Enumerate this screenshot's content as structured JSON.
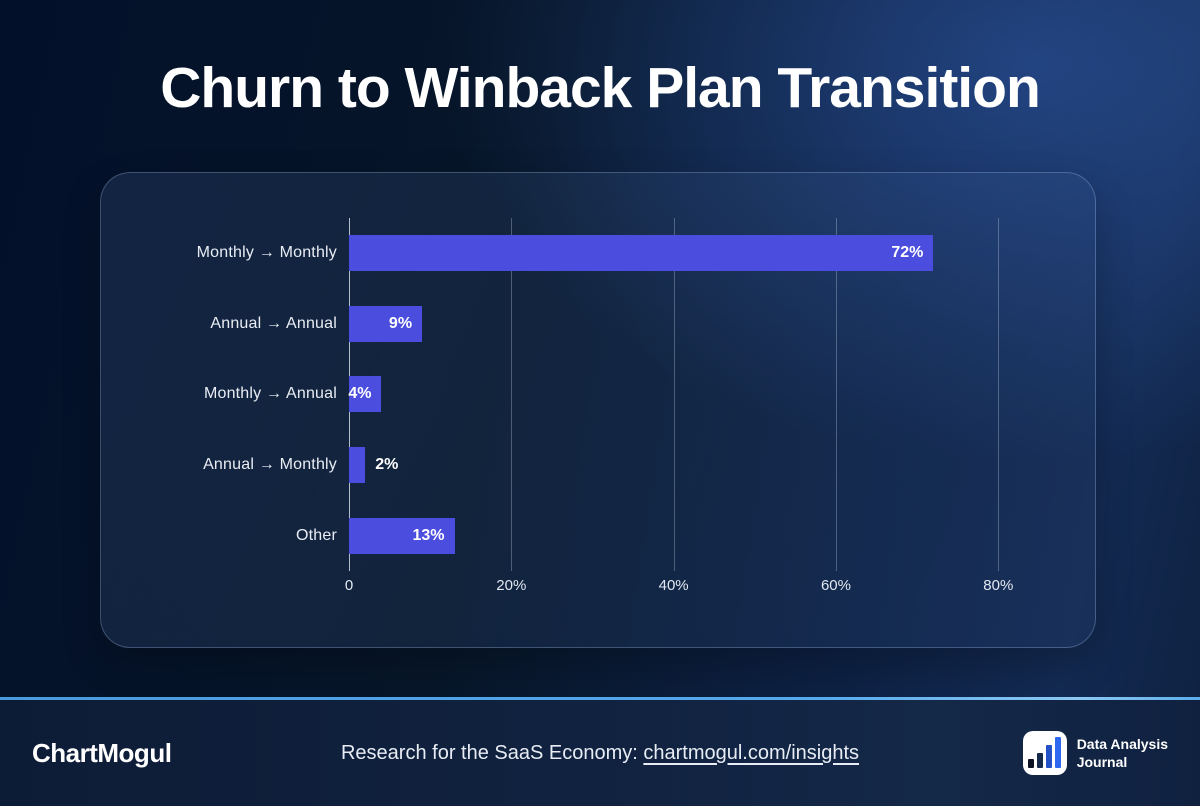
{
  "title": "Churn to Winback Plan Transition",
  "chart_data": {
    "type": "bar",
    "orientation": "horizontal",
    "title": "Churn to Winback Plan Transition",
    "categories": [
      "Monthly → Monthly",
      "Annual → Annual",
      "Monthly → Annual",
      "Annual → Monthly",
      "Other"
    ],
    "values": [
      72,
      9,
      4,
      2,
      13
    ],
    "value_labels": [
      "72%",
      "9%",
      "4%",
      "2%",
      "13%"
    ],
    "xlabel": "",
    "ylabel": "",
    "xlim": [
      0,
      86
    ],
    "x_ticks": [
      {
        "value": 0,
        "label": "0"
      },
      {
        "value": 20,
        "label": "20%"
      },
      {
        "value": 40,
        "label": "40%"
      },
      {
        "value": 60,
        "label": "60%"
      },
      {
        "value": 80,
        "label": "80%"
      }
    ],
    "grid": "vertical",
    "legend": "none",
    "bar_color": "#4a4dde",
    "inside_label_min_value": 4
  },
  "footer": {
    "brand": "ChartMogul",
    "tagline_prefix": "Research for the SaaS Economy: ",
    "tagline_link": "chartmogul.com/insights",
    "journal_icon": "bar-chart-icon",
    "journal_icon_bar_colors": [
      "#0c1322",
      "#152a4c",
      "#2450c8",
      "#2f68f0"
    ],
    "journal_name_line1": "Data Analysis",
    "journal_name_line2": "Journal"
  },
  "colors": {
    "bar": "#4a4dde",
    "divider": "#55a9ec",
    "background_dark": "#03102a",
    "background_light": "#1d3560",
    "footer_background": "#0d1c36",
    "text": "#ffffff"
  }
}
